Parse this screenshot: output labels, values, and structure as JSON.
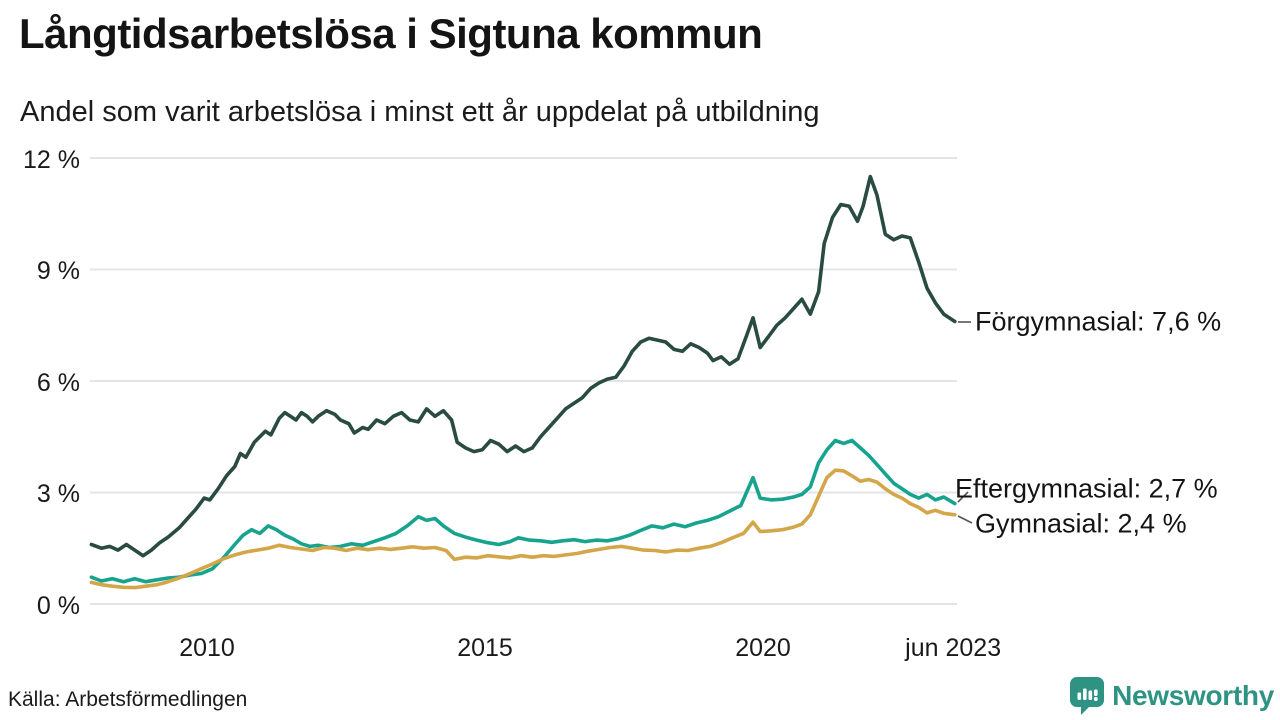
{
  "header": {
    "title": "Långtidsarbetslösa i Sigtuna kommun",
    "subtitle": "Andel som varit arbetslösa i minst ett år uppdelat på utbildning"
  },
  "footer": {
    "source": "Källa: Arbetsförmedlingen",
    "brand": "Newsworthy",
    "brand_color": "#2e9383"
  },
  "chart_data": {
    "type": "line",
    "title": "Långtidsarbetslösa i Sigtuna kommun",
    "subtitle": "Andel som varit arbetslösa i minst ett år uppdelat på utbildning",
    "unit": "%",
    "grid": true,
    "legend_position": "end-of-line-labels-right",
    "xlim": [
      2007.9,
      2023.5
    ],
    "ylim": [
      0,
      12
    ],
    "y_ticks": [
      {
        "value": 12,
        "label": "12 %"
      },
      {
        "value": 9,
        "label": "9 %"
      },
      {
        "value": 6,
        "label": "6 %"
      },
      {
        "value": 3,
        "label": "3 %"
      },
      {
        "value": 0,
        "label": "0 %"
      }
    ],
    "x_ticks": [
      {
        "value": 2010,
        "label": "2010"
      },
      {
        "value": 2015,
        "label": "2015"
      },
      {
        "value": 2020,
        "label": "2020"
      },
      {
        "value": 2023.42,
        "label": "jun 2023"
      }
    ],
    "series": [
      {
        "id": "forgymnasial",
        "name": "Förgymnasial",
        "end_label": "Förgymnasial: 7,6 %",
        "end_value_text": "7,6 %",
        "color": "#294b42",
        "points": [
          [
            2007.92,
            1.6
          ],
          [
            2008.1,
            1.5
          ],
          [
            2008.25,
            1.55
          ],
          [
            2008.4,
            1.45
          ],
          [
            2008.55,
            1.6
          ],
          [
            2008.7,
            1.45
          ],
          [
            2008.85,
            1.3
          ],
          [
            2009.0,
            1.45
          ],
          [
            2009.15,
            1.65
          ],
          [
            2009.3,
            1.8
          ],
          [
            2009.5,
            2.05
          ],
          [
            2009.65,
            2.3
          ],
          [
            2009.8,
            2.55
          ],
          [
            2009.95,
            2.85
          ],
          [
            2010.05,
            2.8
          ],
          [
            2010.2,
            3.1
          ],
          [
            2010.35,
            3.45
          ],
          [
            2010.5,
            3.7
          ],
          [
            2010.6,
            4.05
          ],
          [
            2010.7,
            3.95
          ],
          [
            2010.85,
            4.35
          ],
          [
            2010.95,
            4.5
          ],
          [
            2011.05,
            4.65
          ],
          [
            2011.15,
            4.55
          ],
          [
            2011.3,
            5.0
          ],
          [
            2011.4,
            5.15
          ],
          [
            2011.5,
            5.05
          ],
          [
            2011.6,
            4.95
          ],
          [
            2011.7,
            5.15
          ],
          [
            2011.8,
            5.05
          ],
          [
            2011.9,
            4.9
          ],
          [
            2012.0,
            5.05
          ],
          [
            2012.15,
            5.2
          ],
          [
            2012.3,
            5.1
          ],
          [
            2012.4,
            4.95
          ],
          [
            2012.55,
            4.85
          ],
          [
            2012.65,
            4.6
          ],
          [
            2012.8,
            4.75
          ],
          [
            2012.9,
            4.7
          ],
          [
            2013.05,
            4.95
          ],
          [
            2013.2,
            4.85
          ],
          [
            2013.35,
            5.05
          ],
          [
            2013.5,
            5.15
          ],
          [
            2013.65,
            4.95
          ],
          [
            2013.8,
            4.9
          ],
          [
            2013.95,
            5.25
          ],
          [
            2014.1,
            5.05
          ],
          [
            2014.25,
            5.2
          ],
          [
            2014.4,
            4.95
          ],
          [
            2014.5,
            4.35
          ],
          [
            2014.65,
            4.2
          ],
          [
            2014.8,
            4.1
          ],
          [
            2014.95,
            4.15
          ],
          [
            2015.1,
            4.4
          ],
          [
            2015.25,
            4.3
          ],
          [
            2015.4,
            4.1
          ],
          [
            2015.55,
            4.25
          ],
          [
            2015.7,
            4.1
          ],
          [
            2015.85,
            4.2
          ],
          [
            2016.0,
            4.5
          ],
          [
            2016.15,
            4.75
          ],
          [
            2016.3,
            5.0
          ],
          [
            2016.45,
            5.25
          ],
          [
            2016.6,
            5.4
          ],
          [
            2016.75,
            5.55
          ],
          [
            2016.9,
            5.8
          ],
          [
            2017.05,
            5.95
          ],
          [
            2017.2,
            6.05
          ],
          [
            2017.35,
            6.1
          ],
          [
            2017.5,
            6.4
          ],
          [
            2017.65,
            6.8
          ],
          [
            2017.8,
            7.05
          ],
          [
            2017.95,
            7.15
          ],
          [
            2018.1,
            7.1
          ],
          [
            2018.25,
            7.05
          ],
          [
            2018.4,
            6.85
          ],
          [
            2018.55,
            6.8
          ],
          [
            2018.7,
            7.0
          ],
          [
            2018.85,
            6.9
          ],
          [
            2019.0,
            6.75
          ],
          [
            2019.1,
            6.55
          ],
          [
            2019.25,
            6.65
          ],
          [
            2019.4,
            6.45
          ],
          [
            2019.55,
            6.6
          ],
          [
            2019.7,
            7.2
          ],
          [
            2019.82,
            7.7
          ],
          [
            2019.95,
            6.9
          ],
          [
            2020.1,
            7.2
          ],
          [
            2020.25,
            7.5
          ],
          [
            2020.4,
            7.7
          ],
          [
            2020.55,
            7.95
          ],
          [
            2020.7,
            8.2
          ],
          [
            2020.85,
            7.8
          ],
          [
            2021.0,
            8.4
          ],
          [
            2021.1,
            9.7
          ],
          [
            2021.25,
            10.4
          ],
          [
            2021.4,
            10.75
          ],
          [
            2021.55,
            10.7
          ],
          [
            2021.7,
            10.3
          ],
          [
            2021.8,
            10.7
          ],
          [
            2021.93,
            11.5
          ],
          [
            2022.05,
            11.0
          ],
          [
            2022.2,
            9.95
          ],
          [
            2022.35,
            9.8
          ],
          [
            2022.5,
            9.9
          ],
          [
            2022.65,
            9.85
          ],
          [
            2022.8,
            9.2
          ],
          [
            2022.95,
            8.5
          ],
          [
            2023.1,
            8.1
          ],
          [
            2023.25,
            7.8
          ],
          [
            2023.45,
            7.6
          ]
        ]
      },
      {
        "id": "eftergymnasial",
        "name": "Eftergymnasial",
        "end_label": "Eftergymnasial: 2,7 %",
        "end_value_text": "2,7 %",
        "color": "#17a38e",
        "points": [
          [
            2007.92,
            0.72
          ],
          [
            2008.1,
            0.62
          ],
          [
            2008.3,
            0.68
          ],
          [
            2008.5,
            0.6
          ],
          [
            2008.7,
            0.68
          ],
          [
            2008.9,
            0.6
          ],
          [
            2009.1,
            0.65
          ],
          [
            2009.3,
            0.7
          ],
          [
            2009.5,
            0.72
          ],
          [
            2009.7,
            0.78
          ],
          [
            2009.9,
            0.82
          ],
          [
            2010.1,
            0.95
          ],
          [
            2010.3,
            1.25
          ],
          [
            2010.5,
            1.6
          ],
          [
            2010.65,
            1.85
          ],
          [
            2010.8,
            2.0
          ],
          [
            2010.95,
            1.9
          ],
          [
            2011.1,
            2.1
          ],
          [
            2011.25,
            2.0
          ],
          [
            2011.4,
            1.85
          ],
          [
            2011.55,
            1.75
          ],
          [
            2011.7,
            1.62
          ],
          [
            2011.85,
            1.55
          ],
          [
            2012.0,
            1.58
          ],
          [
            2012.2,
            1.52
          ],
          [
            2012.4,
            1.55
          ],
          [
            2012.6,
            1.62
          ],
          [
            2012.8,
            1.58
          ],
          [
            2013.0,
            1.68
          ],
          [
            2013.2,
            1.78
          ],
          [
            2013.4,
            1.9
          ],
          [
            2013.6,
            2.1
          ],
          [
            2013.8,
            2.35
          ],
          [
            2013.95,
            2.25
          ],
          [
            2014.1,
            2.3
          ],
          [
            2014.25,
            2.1
          ],
          [
            2014.45,
            1.9
          ],
          [
            2014.65,
            1.8
          ],
          [
            2014.85,
            1.72
          ],
          [
            2015.05,
            1.65
          ],
          [
            2015.25,
            1.6
          ],
          [
            2015.45,
            1.68
          ],
          [
            2015.6,
            1.78
          ],
          [
            2015.8,
            1.72
          ],
          [
            2016.0,
            1.7
          ],
          [
            2016.2,
            1.66
          ],
          [
            2016.4,
            1.7
          ],
          [
            2016.6,
            1.73
          ],
          [
            2016.8,
            1.68
          ],
          [
            2017.0,
            1.72
          ],
          [
            2017.2,
            1.7
          ],
          [
            2017.4,
            1.76
          ],
          [
            2017.6,
            1.85
          ],
          [
            2017.8,
            1.98
          ],
          [
            2018.0,
            2.1
          ],
          [
            2018.2,
            2.05
          ],
          [
            2018.4,
            2.15
          ],
          [
            2018.6,
            2.08
          ],
          [
            2018.8,
            2.18
          ],
          [
            2019.0,
            2.25
          ],
          [
            2019.2,
            2.35
          ],
          [
            2019.4,
            2.5
          ],
          [
            2019.6,
            2.65
          ],
          [
            2019.82,
            3.4
          ],
          [
            2019.95,
            2.85
          ],
          [
            2020.15,
            2.8
          ],
          [
            2020.35,
            2.82
          ],
          [
            2020.55,
            2.88
          ],
          [
            2020.7,
            2.95
          ],
          [
            2020.85,
            3.15
          ],
          [
            2021.0,
            3.8
          ],
          [
            2021.15,
            4.15
          ],
          [
            2021.3,
            4.4
          ],
          [
            2021.45,
            4.32
          ],
          [
            2021.6,
            4.4
          ],
          [
            2021.75,
            4.2
          ],
          [
            2021.9,
            4.0
          ],
          [
            2022.05,
            3.75
          ],
          [
            2022.2,
            3.5
          ],
          [
            2022.35,
            3.25
          ],
          [
            2022.5,
            3.1
          ],
          [
            2022.65,
            2.95
          ],
          [
            2022.8,
            2.85
          ],
          [
            2022.95,
            2.95
          ],
          [
            2023.1,
            2.8
          ],
          [
            2023.25,
            2.88
          ],
          [
            2023.45,
            2.7
          ]
        ]
      },
      {
        "id": "gymnasial",
        "name": "Gymnasial",
        "end_label": "Gymnasial: 2,4 %",
        "end_value_text": "2,4 %",
        "color": "#d4a64a",
        "points": [
          [
            2007.92,
            0.58
          ],
          [
            2008.1,
            0.52
          ],
          [
            2008.3,
            0.48
          ],
          [
            2008.5,
            0.45
          ],
          [
            2008.7,
            0.44
          ],
          [
            2008.9,
            0.48
          ],
          [
            2009.1,
            0.52
          ],
          [
            2009.3,
            0.6
          ],
          [
            2009.5,
            0.7
          ],
          [
            2009.7,
            0.82
          ],
          [
            2009.9,
            0.95
          ],
          [
            2010.1,
            1.08
          ],
          [
            2010.3,
            1.22
          ],
          [
            2010.5,
            1.32
          ],
          [
            2010.7,
            1.4
          ],
          [
            2010.9,
            1.45
          ],
          [
            2011.1,
            1.5
          ],
          [
            2011.3,
            1.58
          ],
          [
            2011.5,
            1.52
          ],
          [
            2011.7,
            1.48
          ],
          [
            2011.9,
            1.44
          ],
          [
            2012.1,
            1.52
          ],
          [
            2012.3,
            1.5
          ],
          [
            2012.5,
            1.44
          ],
          [
            2012.7,
            1.5
          ],
          [
            2012.9,
            1.46
          ],
          [
            2013.1,
            1.5
          ],
          [
            2013.3,
            1.47
          ],
          [
            2013.5,
            1.5
          ],
          [
            2013.7,
            1.54
          ],
          [
            2013.9,
            1.5
          ],
          [
            2014.1,
            1.52
          ],
          [
            2014.3,
            1.44
          ],
          [
            2014.45,
            1.2
          ],
          [
            2014.65,
            1.26
          ],
          [
            2014.85,
            1.24
          ],
          [
            2015.05,
            1.3
          ],
          [
            2015.25,
            1.27
          ],
          [
            2015.45,
            1.24
          ],
          [
            2015.65,
            1.3
          ],
          [
            2015.85,
            1.26
          ],
          [
            2016.05,
            1.3
          ],
          [
            2016.25,
            1.28
          ],
          [
            2016.45,
            1.32
          ],
          [
            2016.65,
            1.36
          ],
          [
            2016.85,
            1.42
          ],
          [
            2017.05,
            1.47
          ],
          [
            2017.25,
            1.52
          ],
          [
            2017.45,
            1.55
          ],
          [
            2017.65,
            1.5
          ],
          [
            2017.85,
            1.45
          ],
          [
            2018.05,
            1.44
          ],
          [
            2018.25,
            1.4
          ],
          [
            2018.45,
            1.45
          ],
          [
            2018.65,
            1.44
          ],
          [
            2018.85,
            1.5
          ],
          [
            2019.05,
            1.55
          ],
          [
            2019.25,
            1.65
          ],
          [
            2019.45,
            1.78
          ],
          [
            2019.65,
            1.9
          ],
          [
            2019.82,
            2.2
          ],
          [
            2019.95,
            1.95
          ],
          [
            2020.15,
            1.97
          ],
          [
            2020.35,
            2.0
          ],
          [
            2020.55,
            2.07
          ],
          [
            2020.7,
            2.15
          ],
          [
            2020.85,
            2.4
          ],
          [
            2021.0,
            2.9
          ],
          [
            2021.15,
            3.4
          ],
          [
            2021.3,
            3.6
          ],
          [
            2021.45,
            3.58
          ],
          [
            2021.6,
            3.45
          ],
          [
            2021.75,
            3.3
          ],
          [
            2021.9,
            3.35
          ],
          [
            2022.05,
            3.28
          ],
          [
            2022.2,
            3.1
          ],
          [
            2022.35,
            2.95
          ],
          [
            2022.5,
            2.85
          ],
          [
            2022.65,
            2.7
          ],
          [
            2022.8,
            2.6
          ],
          [
            2022.95,
            2.45
          ],
          [
            2023.1,
            2.52
          ],
          [
            2023.25,
            2.44
          ],
          [
            2023.45,
            2.4
          ]
        ]
      }
    ]
  }
}
